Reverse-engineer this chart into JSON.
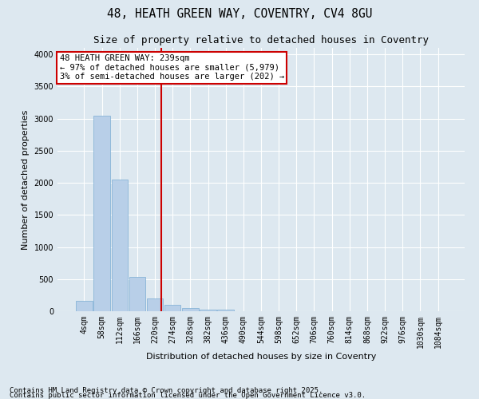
{
  "title1": "48, HEATH GREEN WAY, COVENTRY, CV4 8GU",
  "title2": "Size of property relative to detached houses in Coventry",
  "xlabel": "Distribution of detached houses by size in Coventry",
  "ylabel": "Number of detached properties",
  "bins": [
    "4sqm",
    "58sqm",
    "112sqm",
    "166sqm",
    "220sqm",
    "274sqm",
    "328sqm",
    "382sqm",
    "436sqm",
    "490sqm",
    "544sqm",
    "598sqm",
    "652sqm",
    "706sqm",
    "760sqm",
    "814sqm",
    "868sqm",
    "922sqm",
    "976sqm",
    "1030sqm",
    "1084sqm"
  ],
  "values": [
    160,
    3050,
    2050,
    540,
    200,
    100,
    50,
    30,
    20,
    5,
    2,
    1,
    0,
    0,
    0,
    0,
    0,
    0,
    0,
    0,
    0
  ],
  "bar_color": "#b8cfe8",
  "bar_edge_color": "#7aacd4",
  "vline_color": "#cc0000",
  "vline_pos": 4.35,
  "annotation_text": "48 HEATH GREEN WAY: 239sqm\n← 97% of detached houses are smaller (5,979)\n3% of semi-detached houses are larger (202) →",
  "annotation_box_color": "#ffffff",
  "annotation_box_edge": "#cc0000",
  "ylim": [
    0,
    4100
  ],
  "yticks": [
    0,
    500,
    1000,
    1500,
    2000,
    2500,
    3000,
    3500,
    4000
  ],
  "background_color": "#dde8f0",
  "grid_color": "#ffffff",
  "footer1": "Contains HM Land Registry data © Crown copyright and database right 2025.",
  "footer2": "Contains public sector information licensed under the Open Government Licence v3.0.",
  "title_fontsize": 10.5,
  "subtitle_fontsize": 9,
  "axis_label_fontsize": 8,
  "tick_fontsize": 7,
  "annotation_fontsize": 7.5,
  "footer_fontsize": 6.5
}
